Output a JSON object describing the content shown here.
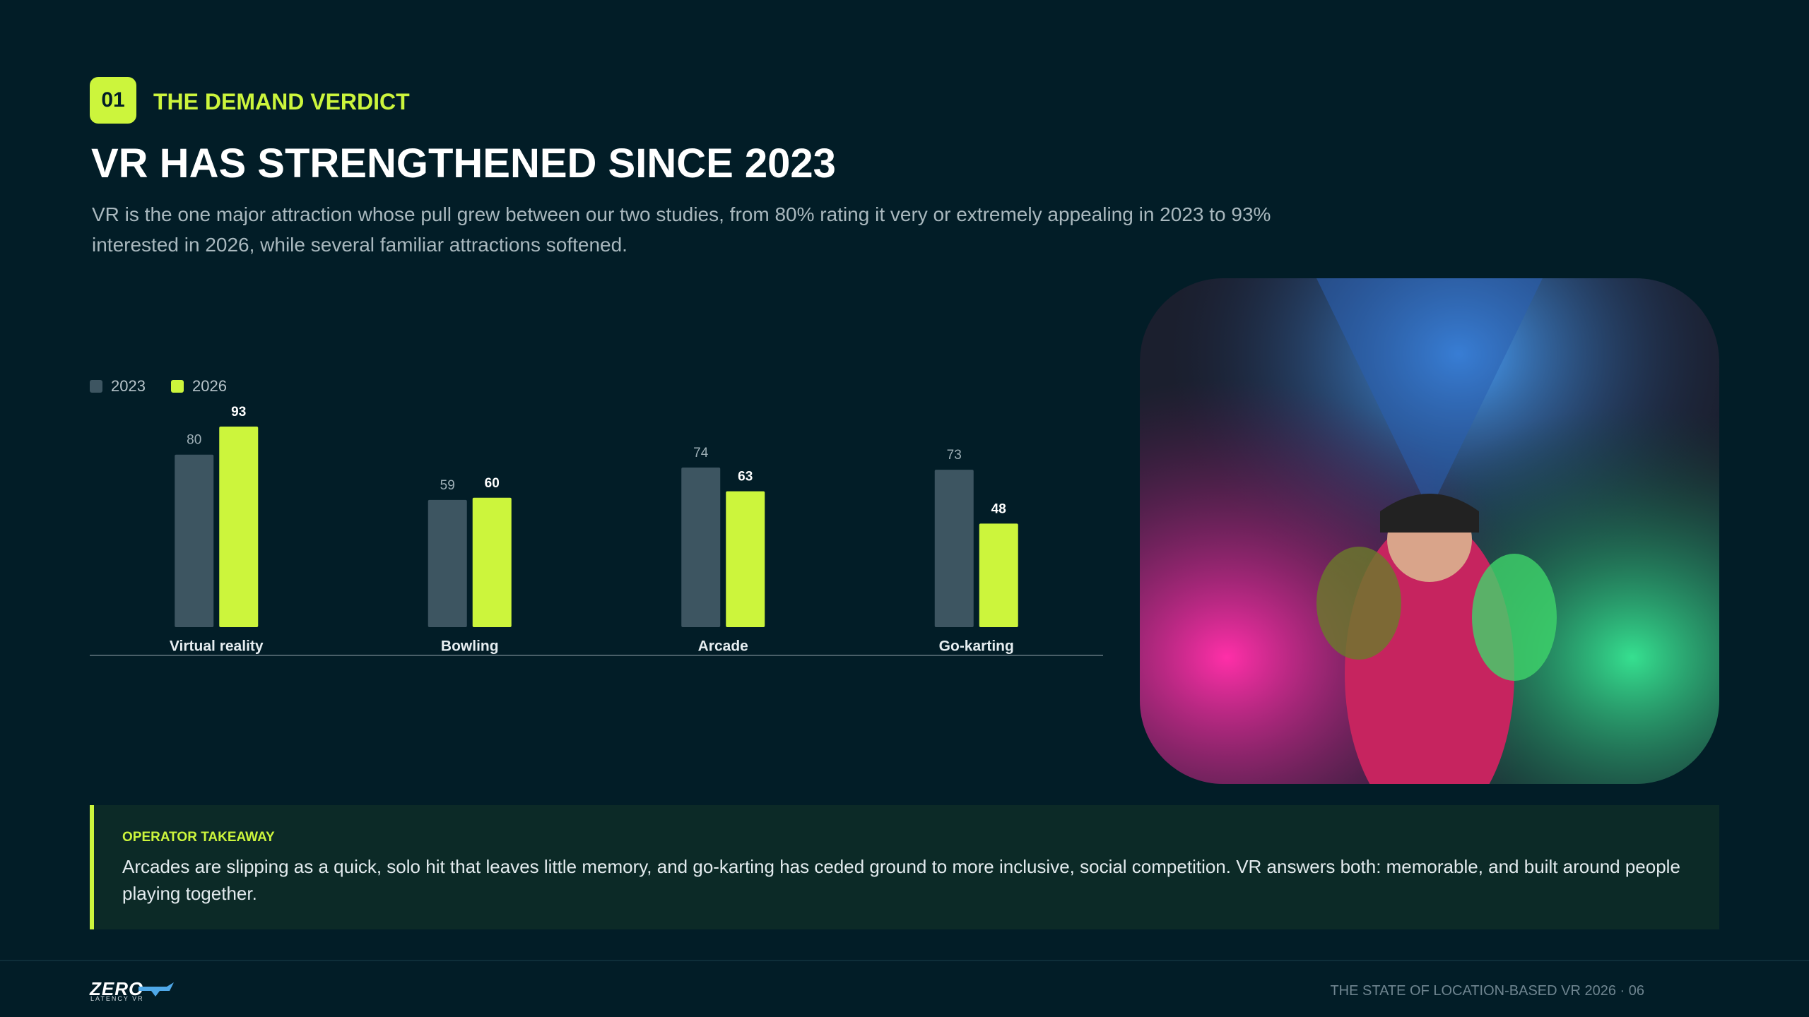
{
  "header": {
    "badge": "01",
    "eyebrow": "THE DEMAND VERDICT",
    "title": "VR HAS STRENGTHENED SINCE 2023",
    "subtitle": "VR is the one major attraction whose pull grew between our two studies, from 80% rating it very or extremely appealing in 2023 to 93% interested in 2026, while several familiar attractions softened."
  },
  "chart_data": {
    "type": "bar",
    "categories": [
      "Virtual reality",
      "Bowling",
      "Arcade",
      "Go-karting"
    ],
    "series": [
      {
        "name": "2023",
        "color": "#3d5561",
        "values": [
          80,
          59,
          74,
          73
        ]
      },
      {
        "name": "2026",
        "color": "#ccf53c",
        "values": [
          93,
          60,
          63,
          48
        ]
      }
    ]
  },
  "takeaway": {
    "label": "OPERATOR TAKEAWAY",
    "text": "Arcades are slipping as a quick, solo hit that leaves little memory, and go-karting has ceded ground to more inclusive, social competition. VR answers both: memorable, and built around people playing together."
  },
  "footer": {
    "logo": "ZERO",
    "logo_sub": "LATENCY VR",
    "caption": "THE STATE OF LOCATION-BASED VR 2026 · 06"
  }
}
